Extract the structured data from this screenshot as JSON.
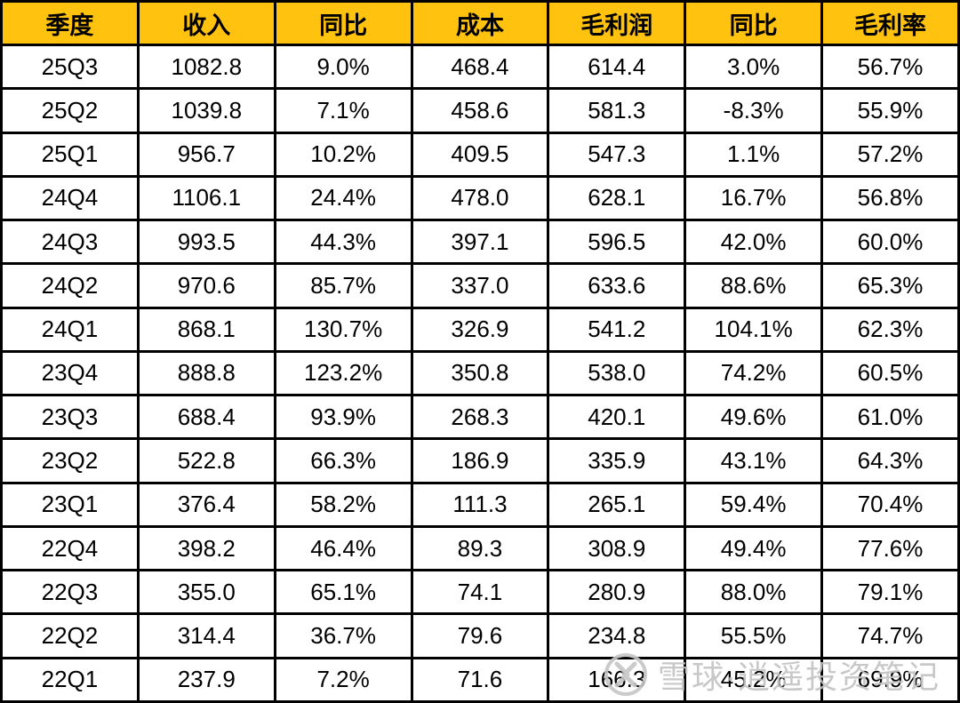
{
  "chart_data": {
    "type": "table",
    "title": "",
    "columns": [
      "季度",
      "收入",
      "同比",
      "成本",
      "毛利润",
      "同比",
      "毛利率"
    ],
    "rows": [
      [
        "25Q3",
        "1082.8",
        "9.0%",
        "468.4",
        "614.4",
        "3.0%",
        "56.7%"
      ],
      [
        "25Q2",
        "1039.8",
        "7.1%",
        "458.6",
        "581.3",
        "-8.3%",
        "55.9%"
      ],
      [
        "25Q1",
        "956.7",
        "10.2%",
        "409.5",
        "547.3",
        "1.1%",
        "57.2%"
      ],
      [
        "24Q4",
        "1106.1",
        "24.4%",
        "478.0",
        "628.1",
        "16.7%",
        "56.8%"
      ],
      [
        "24Q3",
        "993.5",
        "44.3%",
        "397.1",
        "596.5",
        "42.0%",
        "60.0%"
      ],
      [
        "24Q2",
        "970.6",
        "85.7%",
        "337.0",
        "633.6",
        "88.6%",
        "65.3%"
      ],
      [
        "24Q1",
        "868.1",
        "130.7%",
        "326.9",
        "541.2",
        "104.1%",
        "62.3%"
      ],
      [
        "23Q4",
        "888.8",
        "123.2%",
        "350.8",
        "538.0",
        "74.2%",
        "60.5%"
      ],
      [
        "23Q3",
        "688.4",
        "93.9%",
        "268.3",
        "420.1",
        "49.6%",
        "61.0%"
      ],
      [
        "23Q2",
        "522.8",
        "66.3%",
        "186.9",
        "335.9",
        "43.1%",
        "64.3%"
      ],
      [
        "23Q1",
        "376.4",
        "58.2%",
        "111.3",
        "265.1",
        "59.4%",
        "70.4%"
      ],
      [
        "22Q4",
        "398.2",
        "46.4%",
        "89.3",
        "308.9",
        "49.4%",
        "77.6%"
      ],
      [
        "22Q3",
        "355.0",
        "65.1%",
        "74.1",
        "280.9",
        "88.0%",
        "79.1%"
      ],
      [
        "22Q2",
        "314.4",
        "36.7%",
        "79.6",
        "234.8",
        "55.5%",
        "74.7%"
      ],
      [
        "22Q1",
        "237.9",
        "7.2%",
        "71.6",
        "166.3",
        "45.2%",
        "69.9%"
      ]
    ],
    "layout": {
      "header_bg": "#FFC20E",
      "header_text_color": "#000000",
      "body_bg": "#FFFFFF",
      "border_color": "#000000",
      "grid": true
    }
  },
  "watermark": {
    "icon": "xueqiu-logo",
    "text": "雪球·逍遥投资笔记",
    "color": "#c3c3c3"
  }
}
